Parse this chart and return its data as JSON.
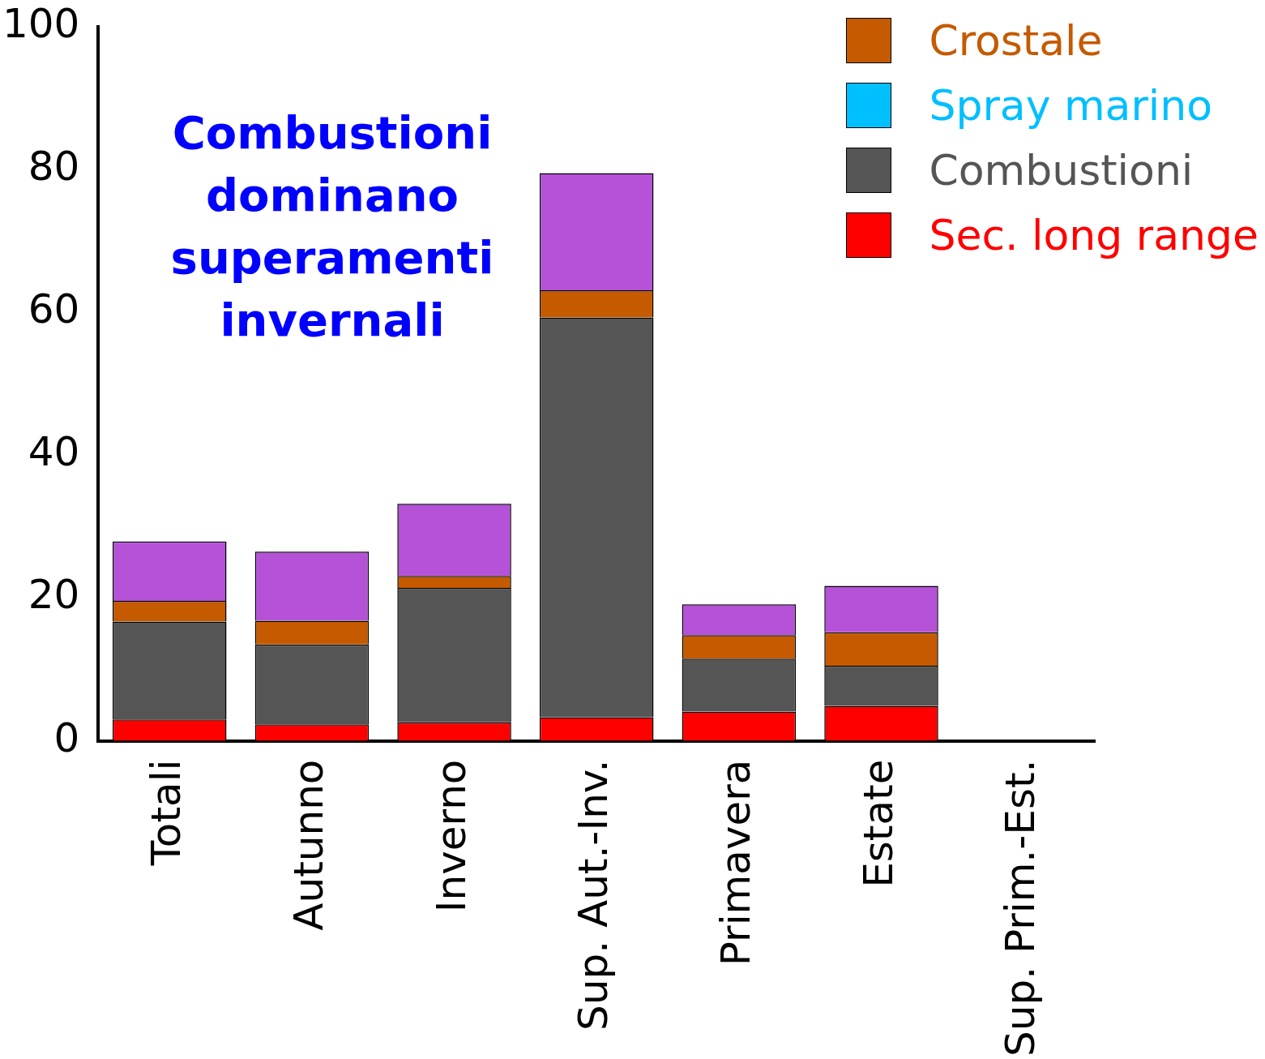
{
  "chart_data": {
    "type": "bar",
    "stacked": true,
    "categories": [
      "Totali",
      "Autunno",
      "Inverno",
      "Sup. Aut.-Inv.",
      "Primavera",
      "Estate",
      "Sup. Prim.-Est."
    ],
    "series": [
      {
        "name": "Sec. long range",
        "color": "#ff0000",
        "values": [
          3,
          2.3,
          2.6,
          3.3,
          4.1,
          4.9,
          null
        ]
      },
      {
        "name": "Combustioni",
        "color": "#555555",
        "values": [
          13.7,
          11.2,
          18.8,
          56,
          7.4,
          5.6,
          null
        ]
      },
      {
        "name": "Spray marino",
        "color": "#00bfff",
        "values": [
          0,
          0,
          0,
          0,
          0,
          0,
          null
        ]
      },
      {
        "name": "Crostale",
        "color": "#c55a00",
        "values": [
          2.9,
          3.3,
          1.7,
          3.8,
          3.3,
          4.7,
          null
        ]
      },
      {
        "color": "#b552d8",
        "values": [
          8.3,
          9.7,
          10.1,
          16.4,
          4.3,
          6.5,
          null
        ]
      }
    ],
    "ylim": [
      0,
      100
    ],
    "yticks": [
      0,
      20,
      40,
      60,
      80,
      100
    ],
    "grid": false,
    "legend": "top right",
    "annotations": [
      "Combustioni dominano superamenti invernali"
    ]
  }
}
